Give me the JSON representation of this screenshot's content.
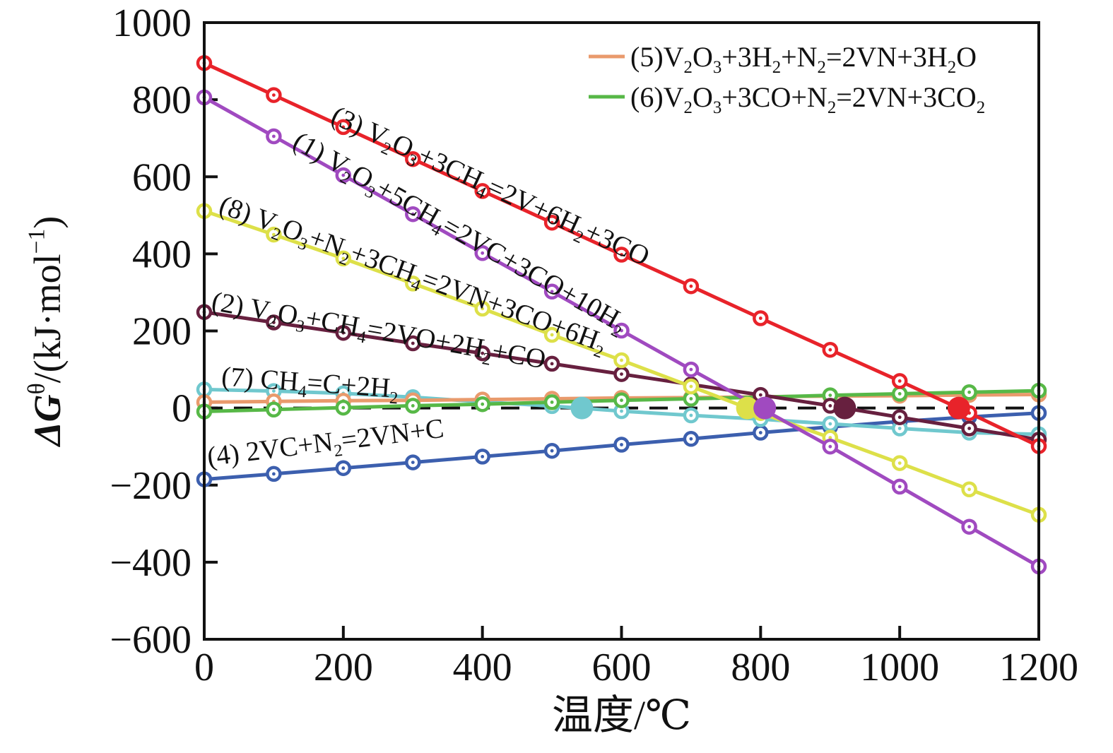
{
  "figure": {
    "x_axis_title": "温度/℃",
    "y_axis_title_formula": "*ΔG*^θ/(kJ·mol^{−1})"
  },
  "chart_data": {
    "type": "line",
    "title": "",
    "xlabel": "温度/℃",
    "ylabel": "ΔG^θ/(kJ·mol^−1)",
    "x_range": [
      0,
      1200
    ],
    "y_range": [
      -600,
      1000
    ],
    "x_ticks": [
      0,
      200,
      400,
      600,
      800,
      1000,
      1200
    ],
    "y_ticks": [
      -600,
      -400,
      -200,
      0,
      200,
      400,
      600,
      800,
      1000
    ],
    "grid": false,
    "zero_line": {
      "y": 0,
      "style": "dashed",
      "color": "#111111"
    },
    "x": [
      0,
      100,
      200,
      300,
      400,
      500,
      600,
      700,
      800,
      900,
      1000,
      1100,
      1200
    ],
    "draw_order": [
      "4",
      "7",
      "5",
      "6",
      "2",
      "8",
      "1",
      "3"
    ],
    "series": [
      {
        "id": "1",
        "label": "(1) V_2O_3+5CH_4=2VC+3CO+10H_2",
        "color": "#a04ac0",
        "values": [
          806,
          705,
          604,
          503,
          402,
          302,
          201,
          100,
          0,
          -100,
          -204,
          -308,
          -411
        ],
        "label_pos": {
          "x": 125,
          "y": 678,
          "angle": 29.5
        }
      },
      {
        "id": "2",
        "label": "(2) V_2O_3+CH_4=2VO+2H_2+CO",
        "color": "#67203f",
        "values": [
          249,
          222,
          195,
          168,
          142,
          115,
          88,
          61,
          34,
          6,
          -24,
          -53,
          -82
        ],
        "label_pos": {
          "x": 9,
          "y": 255,
          "angle": 10
        }
      },
      {
        "id": "3",
        "label": "(3) V_2O_3+3CH_4=2V+6H_2+3CO",
        "color": "#e8232a",
        "values": [
          895,
          812,
          729,
          646,
          563,
          481,
          398,
          316,
          233,
          151,
          70,
          -13,
          -99
        ],
        "label_pos": {
          "x": 180,
          "y": 742,
          "angle": 24.6
        }
      },
      {
        "id": "4",
        "label": "(4) 2VC+N_2=2VN+C",
        "color": "#3c5fae",
        "values": [
          -185,
          -171,
          -156,
          -141,
          -126,
          -111,
          -95,
          -80,
          -64,
          -49,
          -35,
          -23,
          -13
        ],
        "label_pos": {
          "x": 6,
          "y": -150,
          "angle": -7
        }
      },
      {
        "id": "5",
        "label": "(5)V_2O_3+3H_2+N_2=2VN+3H_2O",
        "color": "#e99a6c",
        "values": [
          15,
          17,
          19,
          20,
          22,
          24,
          26,
          27,
          29,
          31,
          32,
          34,
          35
        ],
        "label_pos": null
      },
      {
        "id": "6",
        "label": "(6)V_2O_3+3CO+N_2=2VN+3CO_2",
        "color": "#57b847",
        "values": [
          -9,
          -4,
          1,
          6,
          10,
          15,
          20,
          24,
          28,
          33,
          37,
          41,
          45
        ],
        "label_pos": null
      },
      {
        "id": "7",
        "label": "(7) CH_4=C+2H_2",
        "color": "#70c8ce",
        "values": [
          48,
          44,
          38,
          28,
          16,
          5,
          -8,
          -19,
          -29,
          -41,
          -53,
          -64,
          -68
        ],
        "label_pos": {
          "x": 24,
          "y": 59,
          "angle": 4
        }
      },
      {
        "id": "8",
        "label": "(8) V_2O_3+N_2+3CH_4=2VN+3CO+6H_2",
        "color": "#dde049",
        "values": [
          511,
          450,
          388,
          323,
          258,
          190,
          124,
          56,
          -13,
          -77,
          -143,
          -211,
          -277
        ],
        "label_pos": {
          "x": 19,
          "y": 508,
          "angle": 20
        }
      }
    ],
    "zero_markers": [
      {
        "series": "7",
        "x": 543
      },
      {
        "series": "8",
        "x": 781
      },
      {
        "series": "1",
        "x": 806
      },
      {
        "series": "2",
        "x": 921
      },
      {
        "series": "3",
        "x": 1085
      }
    ],
    "legend": {
      "position": "top-right-inside",
      "items": [
        {
          "series": "5",
          "label": "(5)V_2O_3+3H_2+N_2=2VN+3H_2O",
          "color": "#e99a6c"
        },
        {
          "series": "6",
          "label": "(6)V_2O_3+3CO+N_2=2VN+3CO_2",
          "color": "#57b847"
        }
      ]
    }
  }
}
